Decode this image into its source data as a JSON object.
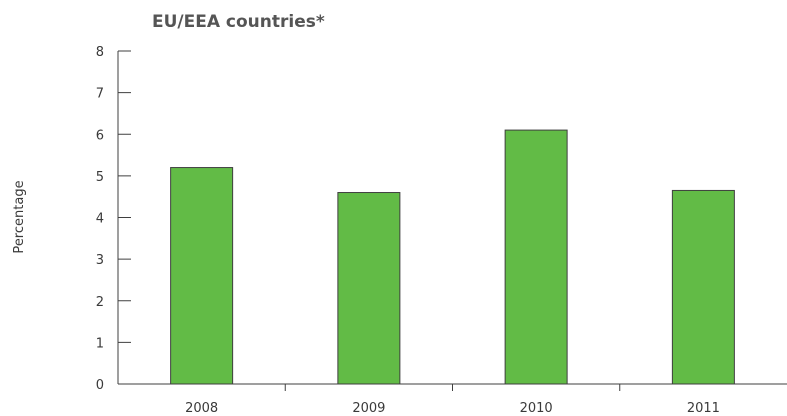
{
  "chart_data": {
    "type": "bar",
    "title": "EU/EEA countries*",
    "xlabel": "",
    "ylabel": "Percentage",
    "categories": [
      "2008",
      "2009",
      "2010",
      "2011"
    ],
    "values": [
      5.2,
      4.6,
      6.1,
      4.65
    ],
    "ylim": [
      0,
      8
    ],
    "yticks": [
      0,
      1,
      2,
      3,
      4,
      5,
      6,
      7,
      8
    ],
    "grid": false,
    "legend": "none",
    "colors": {
      "bar_fill": "#62bb46",
      "bar_stroke": "#3f3f3f",
      "axis": "#3f3f3f"
    }
  }
}
